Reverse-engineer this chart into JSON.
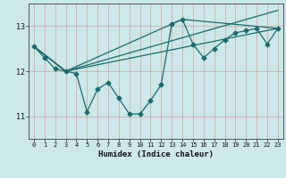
{
  "xlabel": "Humidex (Indice chaleur)",
  "bg_color": "#cce8e8",
  "line_color": "#1a6b6b",
  "grid_color": "#d4a0a0",
  "xlim": [
    -0.5,
    23.5
  ],
  "ylim": [
    10.5,
    13.5
  ],
  "yticks": [
    11,
    12,
    13
  ],
  "xticks": [
    0,
    1,
    2,
    3,
    4,
    5,
    6,
    7,
    8,
    9,
    10,
    11,
    12,
    13,
    14,
    15,
    16,
    17,
    18,
    19,
    20,
    21,
    22,
    23
  ],
  "series1_x": [
    0,
    1,
    2,
    3,
    4,
    5,
    6,
    7,
    8,
    9,
    10,
    11,
    12,
    13,
    14,
    15,
    16,
    17,
    18,
    19,
    20,
    21,
    22,
    23
  ],
  "series1_y": [
    12.55,
    12.3,
    12.05,
    12.0,
    11.95,
    11.1,
    11.6,
    11.75,
    11.4,
    11.05,
    11.05,
    11.35,
    11.7,
    13.05,
    13.15,
    12.6,
    12.3,
    12.5,
    12.7,
    12.85,
    12.9,
    12.95,
    12.6,
    12.95
  ],
  "series2_x": [
    0,
    3,
    23
  ],
  "series2_y": [
    12.55,
    12.0,
    12.95
  ],
  "series3_x": [
    0,
    3,
    14,
    23
  ],
  "series3_y": [
    12.55,
    12.0,
    13.15,
    12.95
  ],
  "series4_x": [
    0,
    3,
    23
  ],
  "series4_y": [
    12.55,
    12.0,
    13.35
  ],
  "markersize": 2.5,
  "linewidth": 0.9
}
